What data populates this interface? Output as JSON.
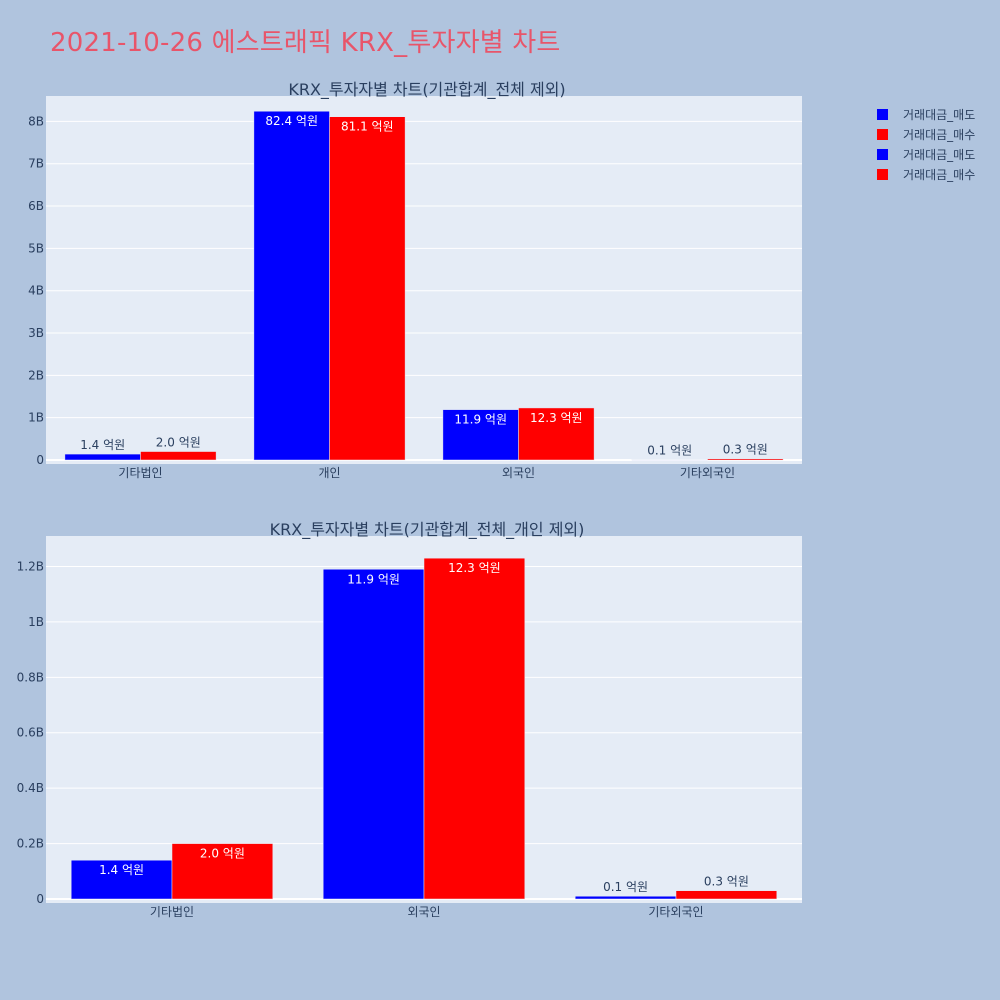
{
  "title": "2021-10-26 에스트래픽 KRX_투자자별 차트",
  "colors": {
    "sell": "#0000ff",
    "buy": "#ff0000",
    "plot_bg": "#e5ecf6",
    "paper_bg": "#b0c4de",
    "title": "#e8556a"
  },
  "legend": {
    "position": "top-right",
    "items": [
      {
        "name": "거래대금_매도",
        "color": "#0000ff"
      },
      {
        "name": "거래대금_매수",
        "color": "#ff0000"
      },
      {
        "name": "거래대금_매도",
        "color": "#0000ff"
      },
      {
        "name": "거래대금_매수",
        "color": "#ff0000"
      }
    ]
  },
  "chart_data": [
    {
      "type": "bar",
      "title": "KRX_투자자별 차트(기관합계_전체 제외)",
      "categories": [
        "기타법인",
        "개인",
        "외국인",
        "기타외국인"
      ],
      "series": [
        {
          "name": "거래대금_매도",
          "color": "#0000ff",
          "values": [
            140000000,
            8240000000,
            1190000000,
            10000000
          ],
          "labels": [
            "1.4 억원",
            "82.4 억원",
            "11.9 억원",
            "0.1 억원"
          ]
        },
        {
          "name": "거래대금_매수",
          "color": "#ff0000",
          "values": [
            200000000,
            8110000000,
            1230000000,
            30000000
          ],
          "labels": [
            "2.0 억원",
            "81.1 억원",
            "12.3 억원",
            "0.3 억원"
          ]
        }
      ],
      "ylim": [
        0,
        8600000000
      ],
      "yticks": [
        0,
        1000000000,
        2000000000,
        3000000000,
        4000000000,
        5000000000,
        6000000000,
        7000000000,
        8000000000
      ],
      "yticklabels": [
        "0",
        "1B",
        "2B",
        "3B",
        "4B",
        "5B",
        "6B",
        "7B",
        "8B"
      ],
      "grid": true
    },
    {
      "type": "bar",
      "title": "KRX_투자자별 차트(기관합계_전체_개인 제외)",
      "categories": [
        "기타법인",
        "외국인",
        "기타외국인"
      ],
      "series": [
        {
          "name": "거래대금_매도",
          "color": "#0000ff",
          "values": [
            140000000,
            1190000000,
            10000000
          ],
          "labels": [
            "1.4 억원",
            "11.9 억원",
            "0.1 억원"
          ]
        },
        {
          "name": "거래대금_매수",
          "color": "#ff0000",
          "values": [
            200000000,
            1230000000,
            30000000
          ],
          "labels": [
            "2.0 억원",
            "12.3 억원",
            "0.3 억원"
          ]
        }
      ],
      "ylim": [
        0,
        1310000000
      ],
      "yticks": [
        0,
        200000000,
        400000000,
        600000000,
        800000000,
        1000000000,
        1200000000
      ],
      "yticklabels": [
        "0",
        "0.2B",
        "0.4B",
        "0.6B",
        "0.8B",
        "1B",
        "1.2B"
      ],
      "grid": true
    }
  ]
}
